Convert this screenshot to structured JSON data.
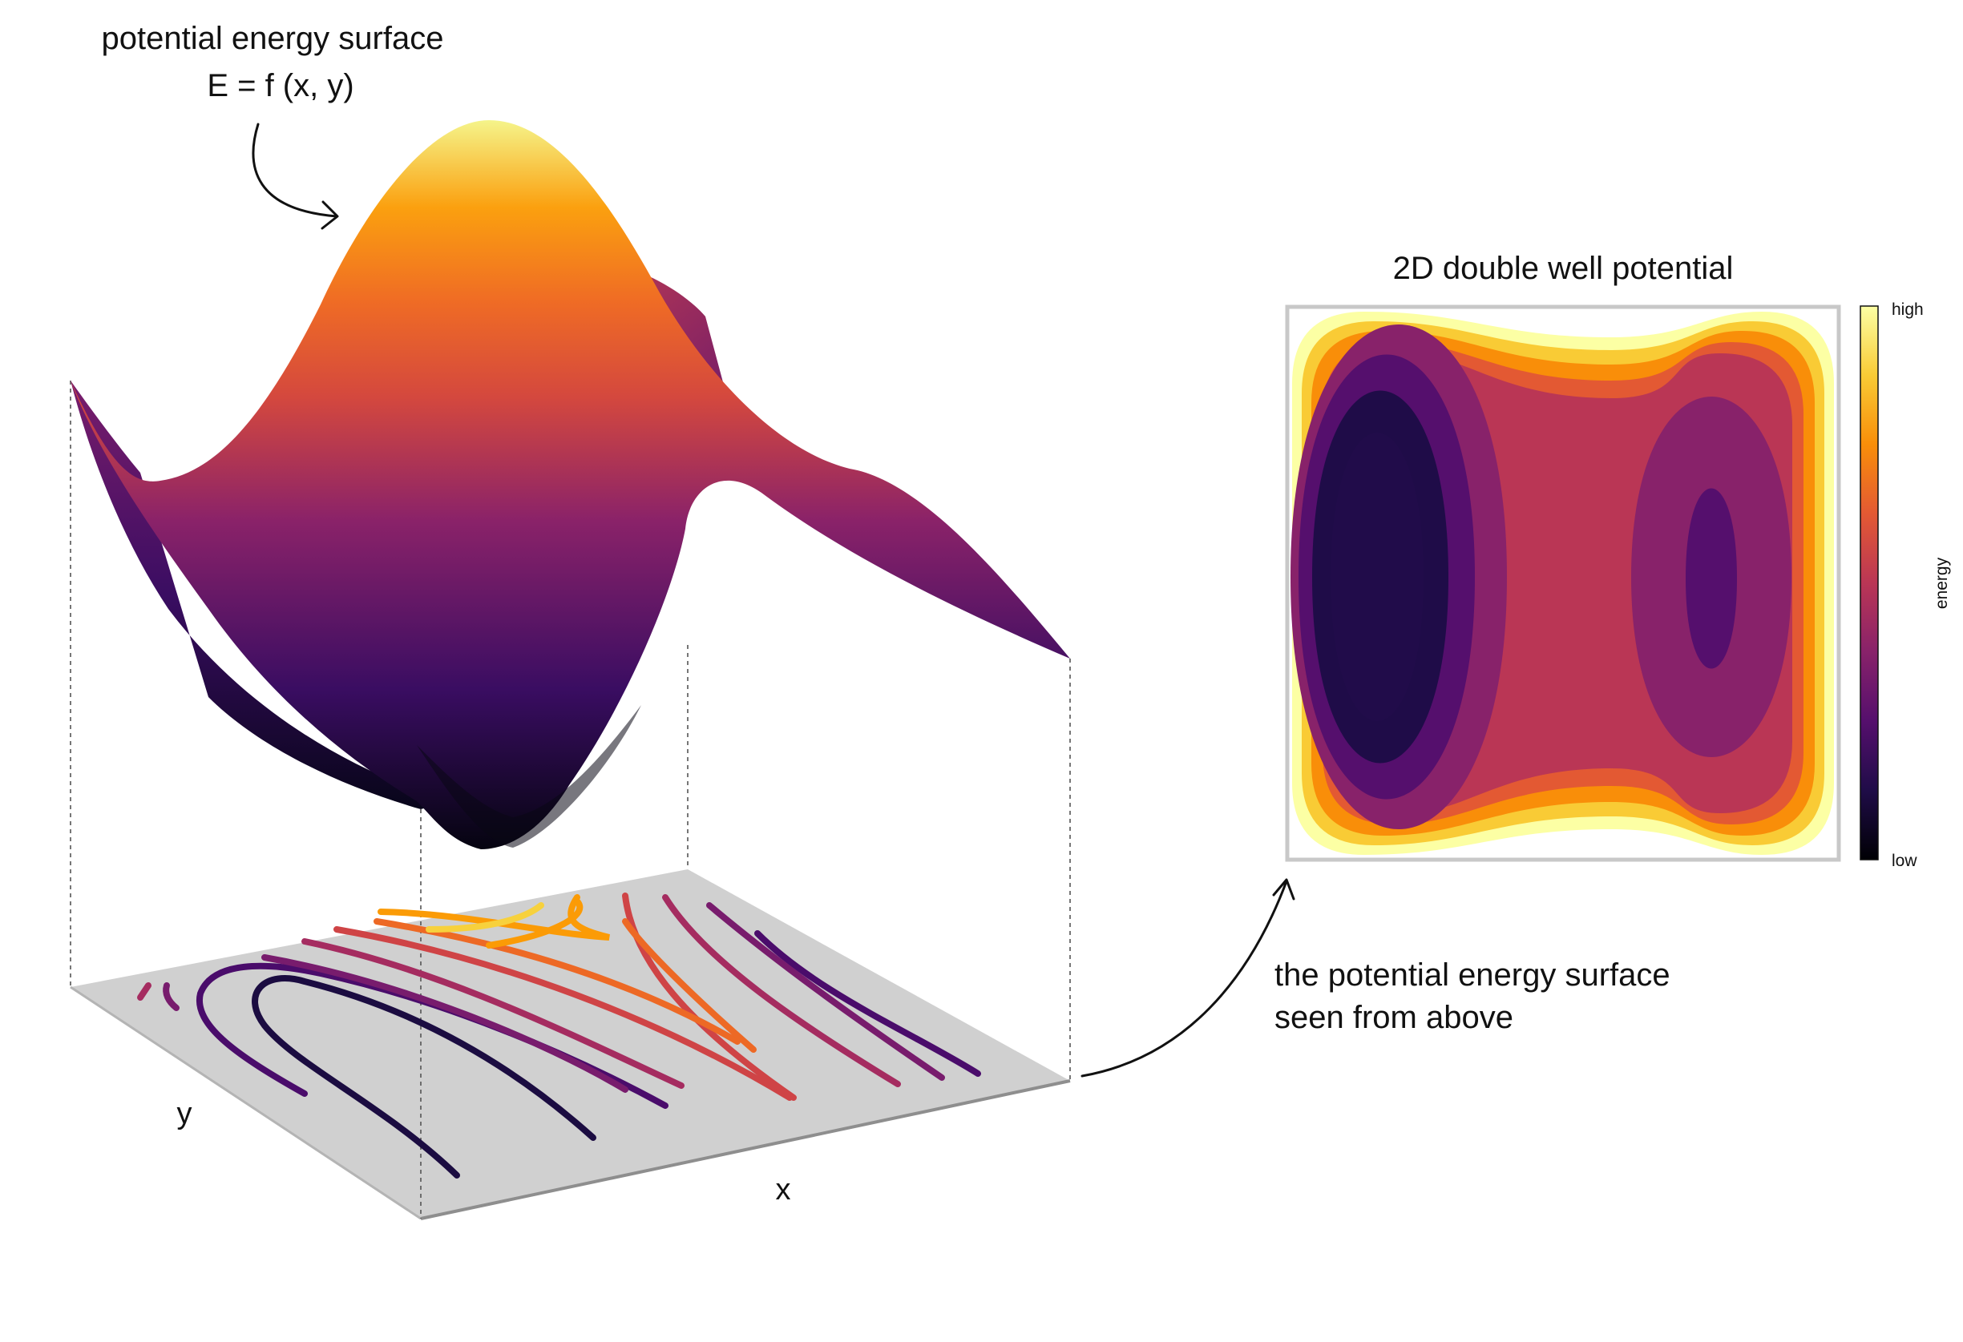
{
  "surface_title": "potential energy surface",
  "surface_formula": "E = f (x, y)",
  "axis_x": "x",
  "axis_y": "y",
  "caption_line1": "the potential energy surface",
  "caption_line2": "seen from above",
  "heatmap_title": "2D double well potential",
  "colorbar": {
    "title": "energy",
    "high": "high",
    "low": "low"
  },
  "colors": {
    "floor": "#d0d0d0",
    "heatmap_frame": "#c8c8c8",
    "inferno_stops": [
      "#000004",
      "#1f0c48",
      "#550f6d",
      "#88226a",
      "#ba3655",
      "#e35933",
      "#f98e09",
      "#f9cb35",
      "#fcffa4"
    ]
  },
  "contour_colors": [
    "#1b0c41",
    "#4a0c6b",
    "#781c6d",
    "#a52c60",
    "#cf4446",
    "#ed6925",
    "#fb9b06",
    "#f7d13d"
  ]
}
